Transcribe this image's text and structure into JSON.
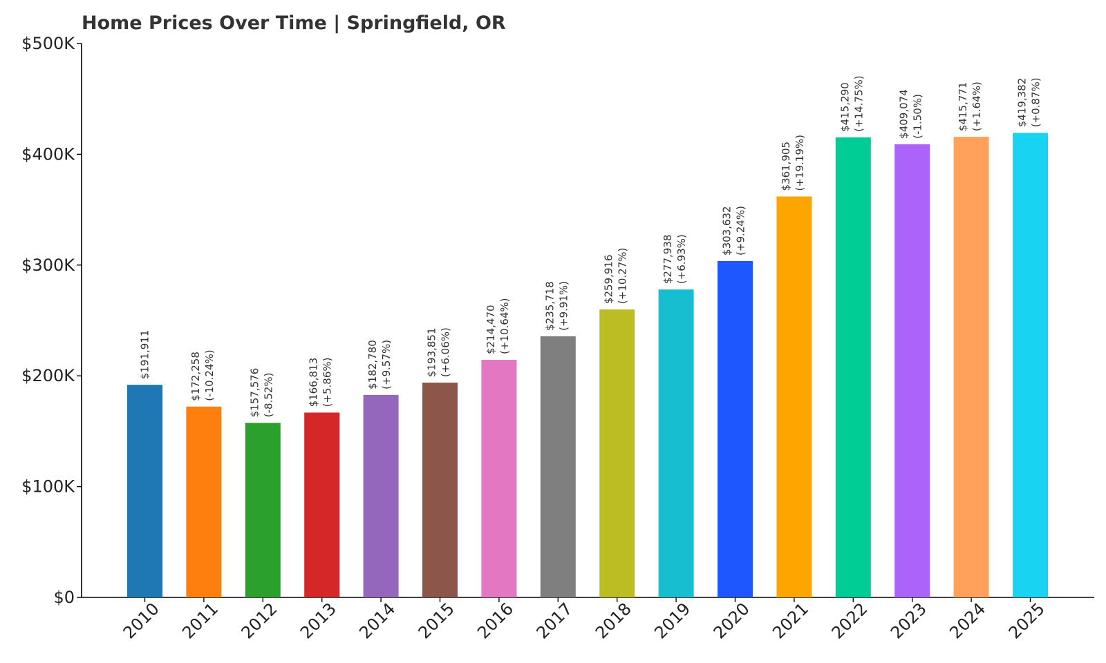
{
  "chart_data": {
    "type": "bar",
    "title": "Home Prices Over Time | Springfield, OR",
    "xlabel": "",
    "ylabel": "",
    "ylim": [
      0,
      500000
    ],
    "yticks": [
      0,
      100000,
      200000,
      300000,
      400000,
      500000
    ],
    "ytick_labels": [
      "$0",
      "$100K",
      "$200K",
      "$300K",
      "$400K",
      "$500K"
    ],
    "grid": false,
    "categories": [
      "2010",
      "2011",
      "2012",
      "2013",
      "2014",
      "2015",
      "2016",
      "2017",
      "2018",
      "2019",
      "2020",
      "2021",
      "2022",
      "2023",
      "2024",
      "2025"
    ],
    "values": [
      191911,
      172258,
      157576,
      166813,
      182780,
      193851,
      214470,
      235718,
      259916,
      277938,
      303632,
      361905,
      415290,
      409074,
      415771,
      419382
    ],
    "value_labels": [
      "$191,911",
      "$172,258",
      "$157,576",
      "$166,813",
      "$182,780",
      "$193,851",
      "$214,470",
      "$235,718",
      "$259,916",
      "$277,938",
      "$303,632",
      "$361,905",
      "$415,290",
      "$409,074",
      "$415,771",
      "$419,382"
    ],
    "change_labels": [
      "",
      "(-10.24%)",
      "(-8.52%)",
      "(+5.86%)",
      "(+9.57%)",
      "(+6.06%)",
      "(+10.64%)",
      "(+9.91%)",
      "(+10.27%)",
      "(+6.93%)",
      "(+9.24%)",
      "(+19.19%)",
      "(+14.75%)",
      "(-1.50%)",
      "(+1.64%)",
      "(+0.87%)"
    ],
    "colors": [
      "#1f77b4",
      "#ff7f0e",
      "#2ca02c",
      "#d62728",
      "#9467bd",
      "#8c564b",
      "#e377c2",
      "#7f7f7f",
      "#bcbd22",
      "#17becf",
      "#1f57ff",
      "#ffa500",
      "#00cc96",
      "#ab63fa",
      "#ffa15a",
      "#19d3f3"
    ]
  }
}
